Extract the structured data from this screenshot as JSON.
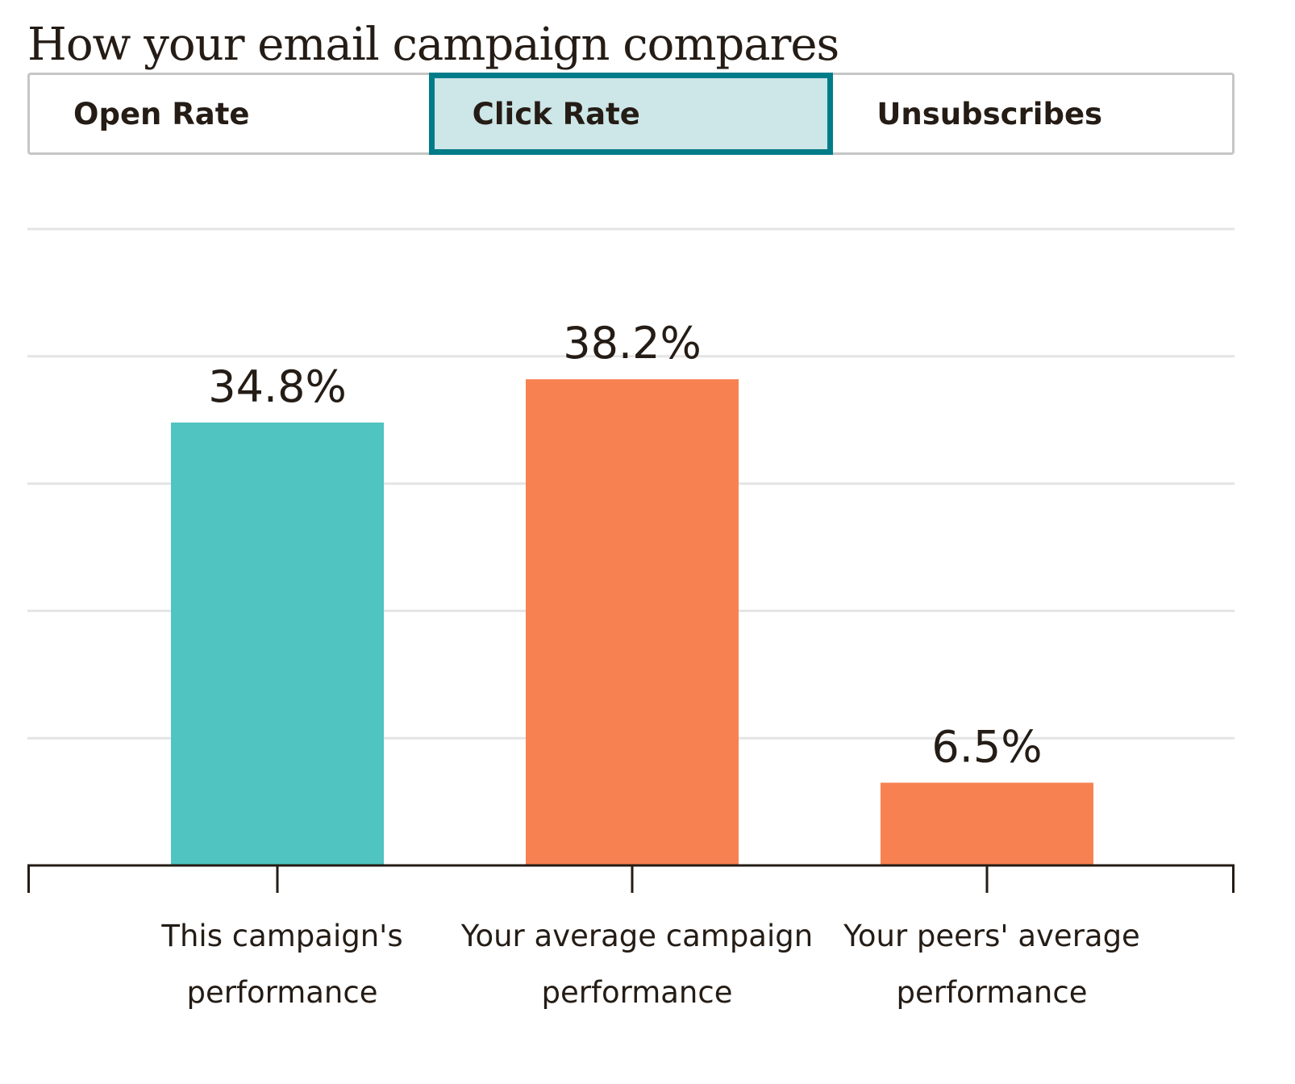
{
  "title": "How your email campaign compares",
  "tabs": [
    {
      "label": "Open Rate",
      "active": false
    },
    {
      "label": "Click Rate",
      "active": true
    },
    {
      "label": "Unsubscribes",
      "active": false
    }
  ],
  "colors": {
    "this_campaign": "#4fc4c1",
    "comparison": "#f88151",
    "gridline": "#e4e4e4",
    "axis": "#241c15",
    "active_tab_border": "#007c89",
    "active_tab_fill": "#cde6e7"
  },
  "chart_data": {
    "type": "bar",
    "title": "",
    "xlabel": "",
    "ylabel": "",
    "ylim": [
      0,
      50
    ],
    "grid": true,
    "categories": [
      [
        "This campaign's",
        "performance"
      ],
      [
        "Your average campaign",
        "performance"
      ],
      [
        "Your peers' average",
        "performance"
      ]
    ],
    "values": [
      34.8,
      38.2,
      6.5
    ],
    "value_labels": [
      "34.8%",
      "38.2%",
      "6.5%"
    ],
    "bar_colors": [
      "#4fc4c1",
      "#f88151",
      "#f88151"
    ]
  }
}
